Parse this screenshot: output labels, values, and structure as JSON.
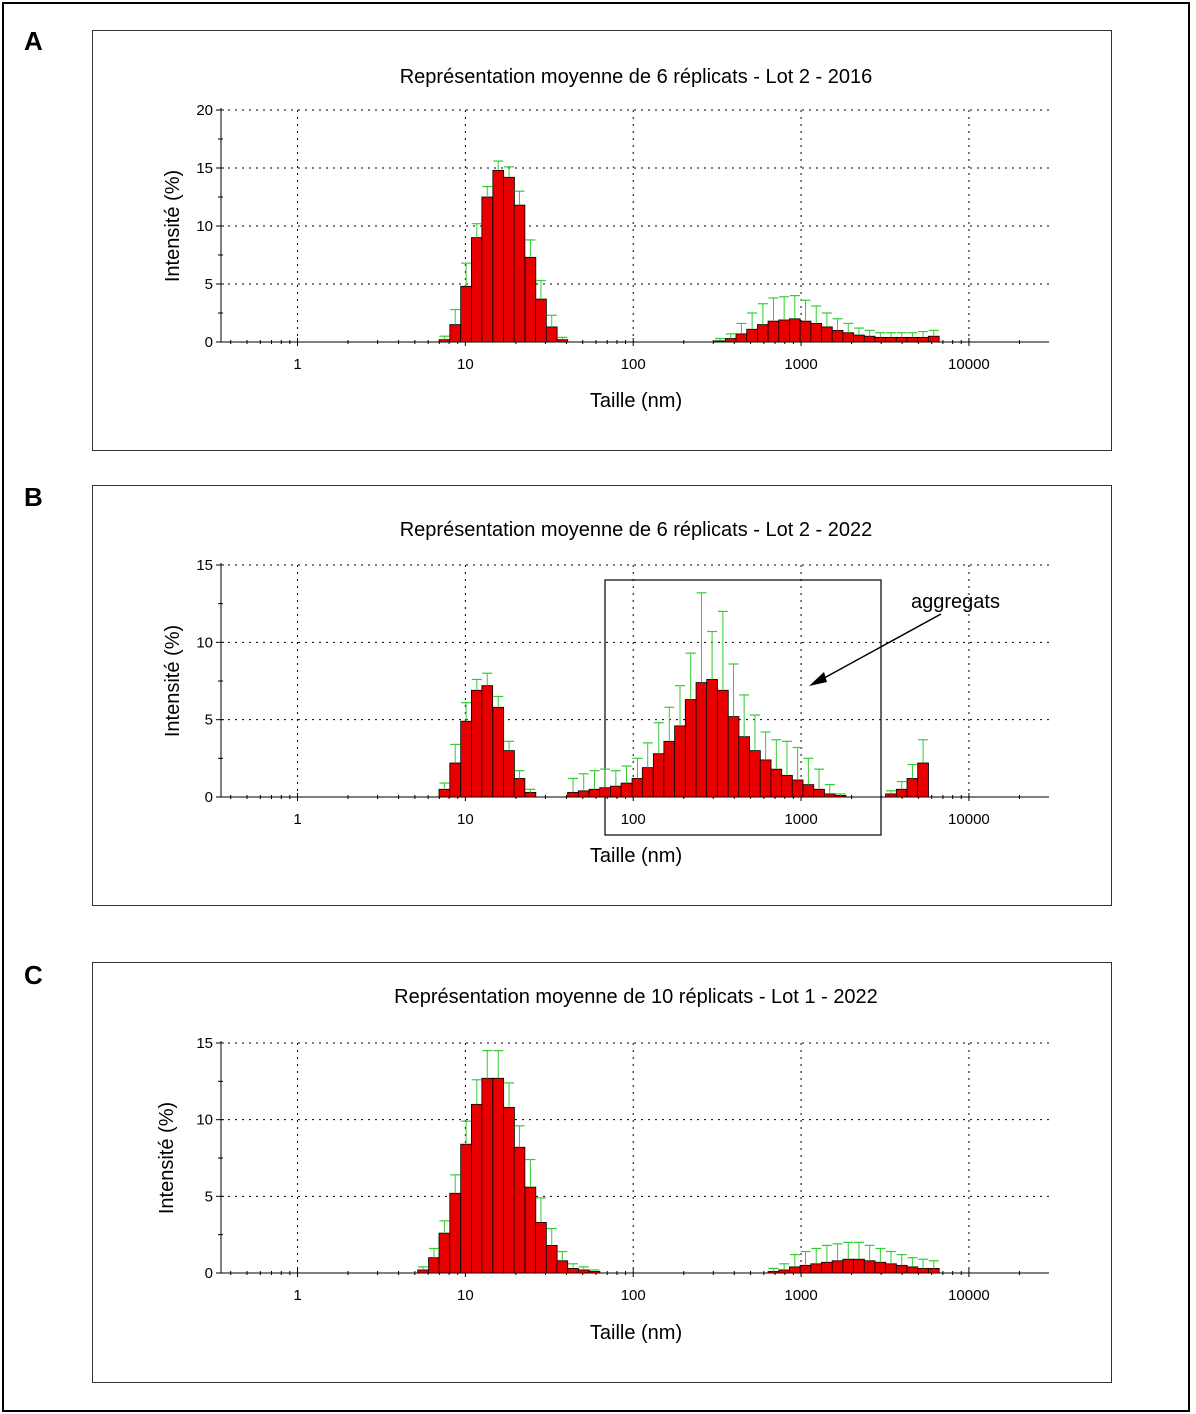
{
  "panels": [
    "A",
    "B",
    "C"
  ],
  "chart_data": [
    {
      "type": "bar",
      "panel": "A",
      "title": "Représentation moyenne de 6 réplicats - Lot 2 - 2016",
      "xlabel": "Taille (nm)",
      "ylabel": "Intensité (%)",
      "x_scale": "log",
      "xlim": [
        0.35,
        30000
      ],
      "ylim": [
        0,
        20
      ],
      "yticks": [
        0,
        5,
        10,
        15,
        20
      ],
      "xticks": [
        1,
        10,
        100,
        1000,
        10000
      ],
      "xtick_labels": [
        "1",
        "10",
        "100",
        "1000",
        "10000"
      ],
      "grid": "dotted",
      "bar_color": "#e80000",
      "error_color": "#33cc33",
      "x": [
        7.5,
        8.7,
        10.1,
        11.7,
        13.5,
        15.7,
        18.2,
        21.0,
        24.4,
        28.2,
        32.7,
        37.8,
        329,
        381,
        441,
        511,
        592,
        685,
        793,
        918,
        1063,
        1231,
        1425,
        1650,
        1911,
        2213,
        2562,
        2967,
        3435,
        3978,
        4606,
        5333,
        6176
      ],
      "values": [
        0.2,
        1.5,
        4.8,
        9.0,
        12.5,
        14.8,
        14.2,
        11.8,
        7.3,
        3.7,
        1.3,
        0.2,
        0.1,
        0.3,
        0.7,
        1.1,
        1.5,
        1.8,
        1.9,
        2.0,
        1.8,
        1.6,
        1.3,
        1.0,
        0.8,
        0.6,
        0.5,
        0.4,
        0.4,
        0.4,
        0.4,
        0.4,
        0.5
      ],
      "errors": [
        0.3,
        1.3,
        2.0,
        1.2,
        0.9,
        0.8,
        0.9,
        1.2,
        1.5,
        1.6,
        1.0,
        0.2,
        0.2,
        0.4,
        0.9,
        1.4,
        1.8,
        2.0,
        2.0,
        2.0,
        1.8,
        1.5,
        1.2,
        1.0,
        0.8,
        0.6,
        0.5,
        0.4,
        0.4,
        0.4,
        0.4,
        0.5,
        0.5
      ]
    },
    {
      "type": "bar",
      "panel": "B",
      "title": "Représentation moyenne de 6 réplicats - Lot 2 - 2022",
      "xlabel": "Taille (nm)",
      "ylabel": "Intensité (%)",
      "x_scale": "log",
      "xlim": [
        0.35,
        30000
      ],
      "ylim": [
        0,
        15
      ],
      "yticks": [
        0,
        5,
        10,
        15
      ],
      "xticks": [
        1,
        10,
        100,
        1000,
        10000
      ],
      "xtick_labels": [
        "1",
        "10",
        "100",
        "1000",
        "10000"
      ],
      "grid": "dotted",
      "bar_color": "#e80000",
      "error_color": "#33cc33",
      "x": [
        7.5,
        8.7,
        10.1,
        11.7,
        13.5,
        15.7,
        18.2,
        21.0,
        24.4,
        43.8,
        50.7,
        58.8,
        68.0,
        78.8,
        91.2,
        106,
        122,
        142,
        164,
        190,
        220,
        255,
        295,
        342,
        396,
        458,
        531,
        615,
        712,
        824,
        954,
        1105,
        1280,
        1482,
        1716,
        3435,
        3978,
        4606,
        5333
      ],
      "values": [
        0.5,
        2.2,
        4.9,
        6.9,
        7.2,
        5.8,
        3.0,
        1.2,
        0.3,
        0.3,
        0.4,
        0.5,
        0.6,
        0.7,
        0.9,
        1.2,
        1.9,
        2.8,
        3.6,
        4.6,
        6.3,
        7.4,
        7.6,
        6.9,
        5.2,
        3.9,
        3.0,
        2.4,
        1.8,
        1.4,
        1.1,
        0.8,
        0.5,
        0.2,
        0.1,
        0.2,
        0.5,
        1.2,
        2.2
      ],
      "errors": [
        0.4,
        1.2,
        1.2,
        0.7,
        0.8,
        0.7,
        0.6,
        0.5,
        0.2,
        0.9,
        1.1,
        1.2,
        1.2,
        1.0,
        1.1,
        1.3,
        1.6,
        2.0,
        2.2,
        2.6,
        3.0,
        5.8,
        3.1,
        5.1,
        3.4,
        2.7,
        2.3,
        1.8,
        1.9,
        2.2,
        2.1,
        1.7,
        1.3,
        0.6,
        0.1,
        0.2,
        0.5,
        0.9,
        1.5
      ]
    },
    {
      "type": "bar",
      "panel": "C",
      "title": "Représentation moyenne de 10 réplicats - Lot 1 - 2022",
      "xlabel": "Taille (nm)",
      "ylabel": "Intensité (%)",
      "x_scale": "log",
      "xlim": [
        0.35,
        30000
      ],
      "ylim": [
        0,
        15
      ],
      "yticks": [
        0,
        5,
        10,
        15
      ],
      "xticks": [
        1,
        10,
        100,
        1000,
        10000
      ],
      "xtick_labels": [
        "1",
        "10",
        "100",
        "1000",
        "10000"
      ],
      "grid": "dotted",
      "bar_color": "#e80000",
      "error_color": "#33cc33",
      "x": [
        5.6,
        6.5,
        7.5,
        8.7,
        10.1,
        11.7,
        13.5,
        15.7,
        18.2,
        21.0,
        24.4,
        28.2,
        32.7,
        37.8,
        43.8,
        50.7,
        58.8,
        685,
        793,
        918,
        1063,
        1231,
        1425,
        1650,
        1911,
        2213,
        2562,
        2967,
        3435,
        3978,
        4606,
        5333,
        6176
      ],
      "values": [
        0.2,
        1.0,
        2.6,
        5.2,
        8.4,
        11.0,
        12.7,
        12.7,
        10.8,
        8.2,
        5.6,
        3.3,
        1.8,
        0.8,
        0.3,
        0.2,
        0.1,
        0.1,
        0.2,
        0.4,
        0.5,
        0.6,
        0.7,
        0.8,
        0.9,
        0.9,
        0.8,
        0.7,
        0.6,
        0.5,
        0.4,
        0.3,
        0.3
      ],
      "errors": [
        0.2,
        0.6,
        0.8,
        1.2,
        1.5,
        1.6,
        1.8,
        1.8,
        1.6,
        1.4,
        1.8,
        1.6,
        1.1,
        0.6,
        0.3,
        0.2,
        0.1,
        0.2,
        0.4,
        0.8,
        0.9,
        1.0,
        1.1,
        1.1,
        1.1,
        1.1,
        1.0,
        0.9,
        0.8,
        0.7,
        0.6,
        0.6,
        0.5
      ]
    }
  ],
  "annotation": {
    "text": "aggregats"
  }
}
